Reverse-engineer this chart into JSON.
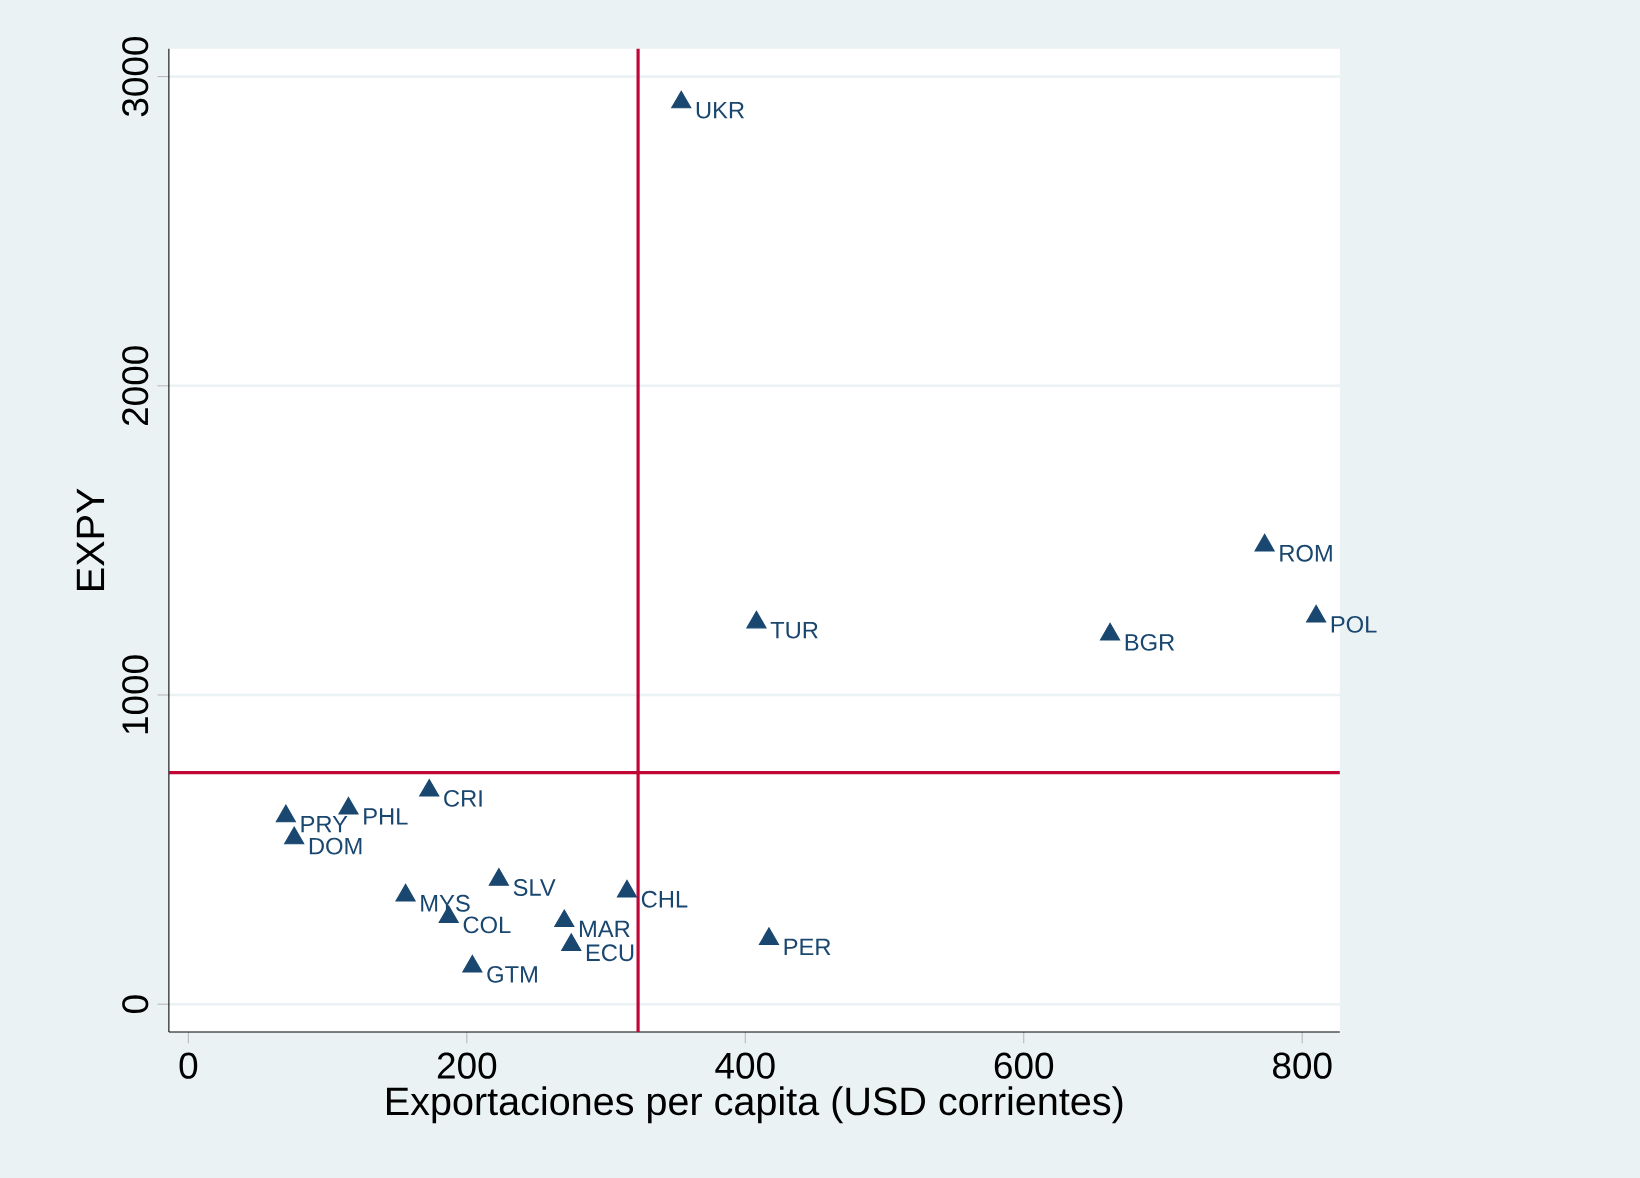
{
  "chart_data": {
    "type": "scatter",
    "xlabel": "Exportaciones per capita (USD corrientes)",
    "ylabel": "EXPY",
    "x": [
      354,
      408,
      662,
      773,
      810,
      417,
      315,
      270,
      275,
      223,
      187,
      204,
      156,
      173,
      115,
      70,
      76
    ],
    "values": [
      2917,
      1235,
      1196,
      1484,
      1254,
      211,
      365,
      269,
      192,
      403,
      282,
      122,
      352,
      691,
      633,
      608,
      537
    ],
    "color": "#1a476f",
    "marker": "triangle",
    "grid": "y",
    "xlim": [
      -14,
      827
    ],
    "ylim": [
      -90,
      3090
    ],
    "xticks": [
      0,
      200,
      400,
      600,
      800
    ],
    "yticks": [
      0,
      1000,
      2000,
      3000
    ],
    "ref_lines": [
      {
        "axis": "x",
        "value": 323,
        "color": "#c10534"
      },
      {
        "axis": "y",
        "value": 749,
        "color": "#c10534"
      }
    ],
    "annotations": [
      {
        "text": "UKR",
        "x": 354,
        "y": 2917
      },
      {
        "text": "TUR",
        "x": 408,
        "y": 1235
      },
      {
        "text": "BGR",
        "x": 662,
        "y": 1196
      },
      {
        "text": "ROM",
        "x": 773,
        "y": 1484
      },
      {
        "text": "POL",
        "x": 810,
        "y": 1254
      },
      {
        "text": "PER",
        "x": 417,
        "y": 211
      },
      {
        "text": "CHL",
        "x": 315,
        "y": 365
      },
      {
        "text": "MAR",
        "x": 270,
        "y": 269
      },
      {
        "text": "ECU",
        "x": 275,
        "y": 192
      },
      {
        "text": "SLV",
        "x": 223,
        "y": 403
      },
      {
        "text": "COL",
        "x": 187,
        "y": 282
      },
      {
        "text": "GTM",
        "x": 204,
        "y": 122
      },
      {
        "text": "MYS",
        "x": 156,
        "y": 352
      },
      {
        "text": "CRI",
        "x": 173,
        "y": 691
      },
      {
        "text": "PHL",
        "x": 115,
        "y": 633
      },
      {
        "text": "PRY",
        "x": 70,
        "y": 608
      },
      {
        "text": "DOM",
        "x": 76,
        "y": 537
      }
    ]
  }
}
